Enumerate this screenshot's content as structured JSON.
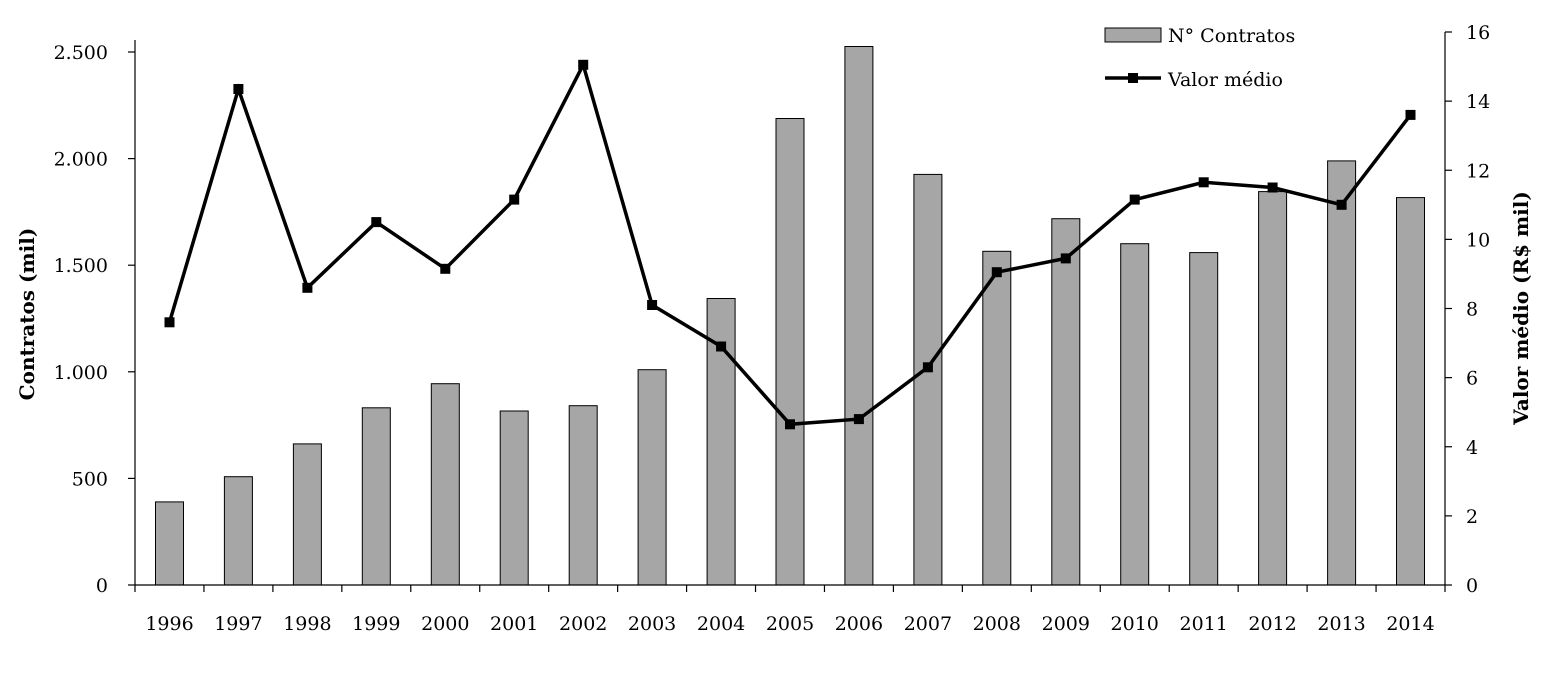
{
  "chart_data": {
    "type": "bar+line",
    "categories": [
      "1996",
      "1997",
      "1998",
      "1999",
      "2000",
      "2001",
      "2002",
      "2003",
      "2004",
      "2005",
      "2006",
      "2007",
      "2008",
      "2009",
      "2010",
      "2011",
      "2012",
      "2013",
      "2014"
    ],
    "series": [
      {
        "name": "N° Contratos",
        "type": "bar",
        "axis": "left",
        "color": "#a6a6a6",
        "values": [
          390,
          508,
          662,
          831,
          944,
          816,
          841,
          1010,
          1344,
          2188,
          2526,
          1926,
          1565,
          1718,
          1601,
          1559,
          1845,
          1989,
          1817
        ]
      },
      {
        "name": "Valor médio",
        "type": "line",
        "axis": "right",
        "color": "#000000",
        "marker": "square",
        "values": [
          7.6,
          14.35,
          8.6,
          10.5,
          9.15,
          11.15,
          15.05,
          8.1,
          6.9,
          4.65,
          4.8,
          6.3,
          9.05,
          9.45,
          11.15,
          11.65,
          11.5,
          11.0,
          13.6
        ]
      }
    ],
    "ylabel_left": "Contratos  (mil)",
    "ylabel_right": "Valor médio (R$ mil)",
    "ylim_left": [
      0,
      2600
    ],
    "yticks_left": [
      0,
      500,
      1000,
      1500,
      2000,
      2500
    ],
    "ytick_labels_left": [
      "0",
      "500",
      "1.000",
      "1.500",
      "2.000",
      "2.500"
    ],
    "ylim_right": [
      0,
      16
    ],
    "yticks_right": [
      0,
      2,
      4,
      6,
      8,
      10,
      12,
      14,
      16
    ],
    "ytick_labels_right": [
      "0",
      "2",
      "4",
      "6",
      "8",
      "10",
      "12",
      "14",
      "16"
    ],
    "legend": {
      "placement": "top-right",
      "entries": [
        "N° Contratos",
        "Valor médio"
      ]
    },
    "grid": false
  }
}
